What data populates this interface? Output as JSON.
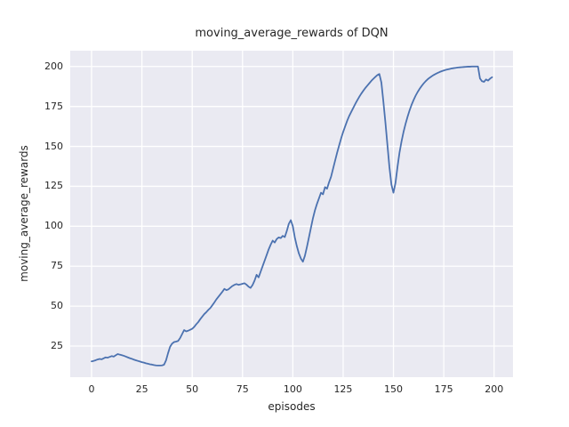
{
  "chart_data": {
    "type": "line",
    "title": "moving_average_rewards of DQN",
    "xlabel": "episodes",
    "ylabel": "moving_average_rewards",
    "x_ticks": [
      0,
      25,
      50,
      75,
      100,
      125,
      150,
      175,
      200
    ],
    "y_ticks": [
      25,
      50,
      75,
      100,
      125,
      150,
      175,
      200
    ],
    "xlim": [
      -10.6,
      209.4
    ],
    "ylim": [
      5.5,
      209.9
    ],
    "grid": true,
    "legend_position": "none",
    "style": {
      "line_color": "#4C72B0",
      "plot_background": "#EAEAF2",
      "grid_color": "#FFFFFF",
      "text_color": "#262626",
      "figure_background": "#FFFFFF"
    },
    "series": [
      {
        "name": "DQN moving average rewards",
        "points": [
          [
            0,
            15.4
          ],
          [
            1,
            15.7
          ],
          [
            2,
            16.1
          ],
          [
            3,
            16.6
          ],
          [
            4,
            16.9
          ],
          [
            5,
            16.7
          ],
          [
            6,
            17.3
          ],
          [
            7,
            17.9
          ],
          [
            8,
            17.7
          ],
          [
            9,
            18.2
          ],
          [
            10,
            18.7
          ],
          [
            11,
            18.4
          ],
          [
            12,
            19.2
          ],
          [
            13,
            20.0
          ],
          [
            14,
            19.6
          ],
          [
            15,
            19.3
          ],
          [
            16,
            18.9
          ],
          [
            17,
            18.4
          ],
          [
            18,
            17.9
          ],
          [
            19,
            17.4
          ],
          [
            20,
            17.0
          ],
          [
            21,
            16.5
          ],
          [
            22,
            16.1
          ],
          [
            23,
            15.7
          ],
          [
            24,
            15.3
          ],
          [
            25,
            14.9
          ],
          [
            26,
            14.6
          ],
          [
            27,
            14.2
          ],
          [
            28,
            13.9
          ],
          [
            29,
            13.6
          ],
          [
            30,
            13.4
          ],
          [
            31,
            13.1
          ],
          [
            32,
            12.9
          ],
          [
            33,
            12.8
          ],
          [
            34,
            12.8
          ],
          [
            35,
            12.9
          ],
          [
            36,
            13.3
          ],
          [
            37,
            16.0
          ],
          [
            38,
            20.5
          ],
          [
            39,
            24.5
          ],
          [
            40,
            26.5
          ],
          [
            41,
            27.5
          ],
          [
            42,
            27.8
          ],
          [
            43,
            28.2
          ],
          [
            44,
            30.0
          ],
          [
            45,
            32.5
          ],
          [
            46,
            35.0
          ],
          [
            47,
            34.2
          ],
          [
            48,
            34.6
          ],
          [
            49,
            35.2
          ],
          [
            50,
            35.8
          ],
          [
            51,
            37.0
          ],
          [
            52,
            38.6
          ],
          [
            53,
            40.0
          ],
          [
            54,
            41.8
          ],
          [
            55,
            43.4
          ],
          [
            56,
            45.0
          ],
          [
            57,
            46.2
          ],
          [
            58,
            47.6
          ],
          [
            59,
            48.8
          ],
          [
            60,
            50.5
          ],
          [
            61,
            52.3
          ],
          [
            62,
            54.2
          ],
          [
            63,
            55.8
          ],
          [
            64,
            57.4
          ],
          [
            65,
            59.0
          ],
          [
            66,
            60.8
          ],
          [
            67,
            60.0
          ],
          [
            68,
            60.5
          ],
          [
            69,
            61.6
          ],
          [
            70,
            62.6
          ],
          [
            71,
            63.3
          ],
          [
            72,
            63.8
          ],
          [
            73,
            63.3
          ],
          [
            74,
            63.6
          ],
          [
            75,
            64.0
          ],
          [
            76,
            64.3
          ],
          [
            77,
            63.4
          ],
          [
            78,
            62.2
          ],
          [
            79,
            61.4
          ],
          [
            80,
            63.2
          ],
          [
            81,
            66.0
          ],
          [
            82,
            69.6
          ],
          [
            83,
            68.0
          ],
          [
            84,
            71.5
          ],
          [
            85,
            75.0
          ],
          [
            86,
            78.5
          ],
          [
            87,
            82.0
          ],
          [
            88,
            85.5
          ],
          [
            89,
            88.5
          ],
          [
            90,
            91.0
          ],
          [
            91,
            89.8
          ],
          [
            92,
            92.0
          ],
          [
            93,
            93.0
          ],
          [
            94,
            92.6
          ],
          [
            95,
            94.0
          ],
          [
            96,
            93.2
          ],
          [
            97,
            97.0
          ],
          [
            98,
            101.5
          ],
          [
            99,
            103.8
          ],
          [
            100,
            100.0
          ],
          [
            101,
            93.0
          ],
          [
            102,
            87.5
          ],
          [
            103,
            83.0
          ],
          [
            104,
            79.8
          ],
          [
            105,
            77.8
          ],
          [
            106,
            81.5
          ],
          [
            107,
            87.0
          ],
          [
            108,
            93.0
          ],
          [
            109,
            99.0
          ],
          [
            110,
            105.0
          ],
          [
            111,
            110.0
          ],
          [
            112,
            114.0
          ],
          [
            113,
            117.5
          ],
          [
            114,
            121.0
          ],
          [
            115,
            120.0
          ],
          [
            116,
            124.5
          ],
          [
            117,
            123.5
          ],
          [
            118,
            127.5
          ],
          [
            119,
            131.0
          ],
          [
            120,
            136.0
          ],
          [
            121,
            141.0
          ],
          [
            122,
            146.0
          ],
          [
            123,
            150.5
          ],
          [
            124,
            155.0
          ],
          [
            125,
            159.0
          ],
          [
            126,
            162.5
          ],
          [
            127,
            166.0
          ],
          [
            128,
            169.0
          ],
          [
            129,
            171.5
          ],
          [
            130,
            174.0
          ],
          [
            131,
            176.5
          ],
          [
            132,
            178.8
          ],
          [
            133,
            181.0
          ],
          [
            134,
            183.0
          ],
          [
            135,
            184.8
          ],
          [
            136,
            186.5
          ],
          [
            137,
            188.0
          ],
          [
            138,
            189.5
          ],
          [
            139,
            191.0
          ],
          [
            140,
            192.3
          ],
          [
            141,
            193.5
          ],
          [
            142,
            194.6
          ],
          [
            143,
            195.3
          ],
          [
            144,
            190.0
          ],
          [
            145,
            178.0
          ],
          [
            146,
            165.0
          ],
          [
            147,
            151.0
          ],
          [
            148,
            137.0
          ],
          [
            149,
            126.0
          ],
          [
            150,
            121.0
          ],
          [
            151,
            127.0
          ],
          [
            152,
            137.0
          ],
          [
            153,
            146.0
          ],
          [
            154,
            153.0
          ],
          [
            155,
            159.0
          ],
          [
            156,
            164.0
          ],
          [
            157,
            168.5
          ],
          [
            158,
            172.5
          ],
          [
            159,
            176.0
          ],
          [
            160,
            179.0
          ],
          [
            161,
            181.7
          ],
          [
            162,
            184.0
          ],
          [
            163,
            186.0
          ],
          [
            164,
            187.8
          ],
          [
            165,
            189.4
          ],
          [
            166,
            190.8
          ],
          [
            167,
            192.0
          ],
          [
            168,
            193.0
          ],
          [
            169,
            193.9
          ],
          [
            170,
            194.7
          ],
          [
            171,
            195.4
          ],
          [
            172,
            196.0
          ],
          [
            173,
            196.6
          ],
          [
            174,
            197.1
          ],
          [
            175,
            197.5
          ],
          [
            176,
            197.9
          ],
          [
            177,
            198.2
          ],
          [
            178,
            198.5
          ],
          [
            179,
            198.8
          ],
          [
            180,
            199.0
          ],
          [
            181,
            199.2
          ],
          [
            182,
            199.4
          ],
          [
            183,
            199.5
          ],
          [
            184,
            199.6
          ],
          [
            185,
            199.7
          ],
          [
            186,
            199.8
          ],
          [
            187,
            199.9
          ],
          [
            188,
            199.9
          ],
          [
            189,
            200.0
          ],
          [
            190,
            200.0
          ],
          [
            191,
            200.0
          ],
          [
            192,
            200.0
          ],
          [
            193,
            192.5
          ],
          [
            194,
            190.8
          ],
          [
            195,
            190.4
          ],
          [
            196,
            191.9
          ],
          [
            197,
            191.2
          ],
          [
            198,
            192.4
          ],
          [
            199,
            193.3
          ]
        ]
      }
    ]
  }
}
